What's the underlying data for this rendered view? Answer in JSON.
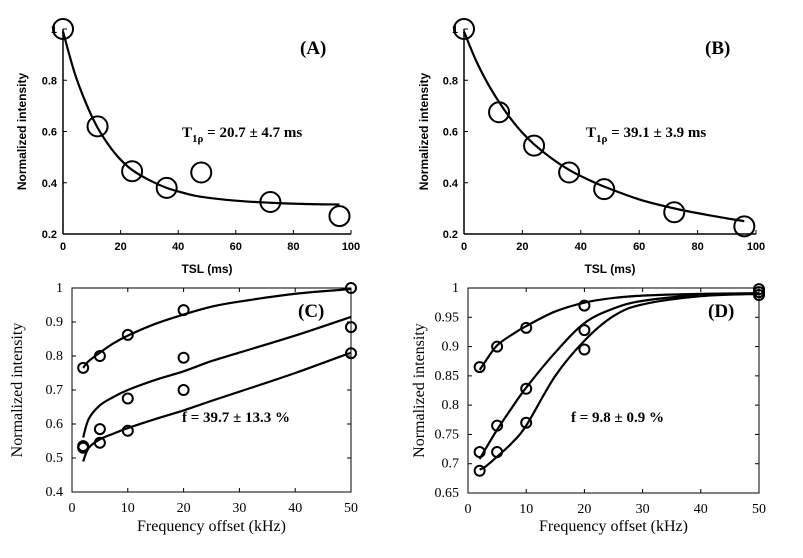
{
  "chart_data": [
    {
      "id": "A",
      "type": "scatter",
      "panel_label": "(A)",
      "xlabel": "TSL (ms)",
      "ylabel": "Normalized intensity",
      "xlim": [
        0,
        100
      ],
      "ylim": [
        0.2,
        1.0
      ],
      "xticks": [
        0,
        20,
        40,
        60,
        80,
        100
      ],
      "yticks": [
        0.2,
        0.4,
        0.6,
        0.8,
        1.0
      ],
      "ytick_labels": [
        "0.2",
        "0.4",
        "0.6",
        "0.8",
        "1"
      ],
      "annotation": {
        "prefix": "T",
        "sub": "1ρ",
        "rest": " = 20.7 ± 4.7 ms"
      },
      "points": {
        "x": [
          0,
          12,
          24,
          36,
          48,
          72,
          96
        ],
        "y": [
          1.0,
          0.62,
          0.445,
          0.38,
          0.44,
          0.325,
          0.27
        ]
      },
      "fit": {
        "x": [
          0,
          4,
          8,
          12,
          16,
          20,
          24,
          30,
          36,
          42,
          48,
          60,
          72,
          84,
          96
        ],
        "y": [
          0.99,
          0.83,
          0.71,
          0.615,
          0.545,
          0.49,
          0.45,
          0.41,
          0.38,
          0.36,
          0.345,
          0.33,
          0.322,
          0.317,
          0.315
        ]
      }
    },
    {
      "id": "B",
      "type": "scatter",
      "panel_label": "(B)",
      "xlabel": "TSL (ms)",
      "ylabel": "Normalized intensity",
      "xlim": [
        0,
        100
      ],
      "ylim": [
        0.2,
        1.0
      ],
      "xticks": [
        0,
        20,
        40,
        60,
        80,
        100
      ],
      "yticks": [
        0.2,
        0.4,
        0.6,
        0.8,
        1.0
      ],
      "ytick_labels": [
        "0.2",
        "0.4",
        "0.6",
        "0.8",
        "1"
      ],
      "annotation": {
        "prefix": "T",
        "sub": "1ρ",
        "rest": " = 39.1 ± 3.9 ms"
      },
      "points": {
        "x": [
          0,
          12,
          24,
          36,
          48,
          72,
          96
        ],
        "y": [
          1.0,
          0.675,
          0.545,
          0.44,
          0.375,
          0.285,
          0.23
        ]
      },
      "fit": {
        "x": [
          0,
          4,
          8,
          12,
          16,
          20,
          24,
          30,
          36,
          42,
          48,
          60,
          72,
          84,
          96
        ],
        "y": [
          0.99,
          0.88,
          0.79,
          0.715,
          0.65,
          0.595,
          0.55,
          0.495,
          0.45,
          0.415,
          0.385,
          0.335,
          0.3,
          0.273,
          0.25
        ]
      }
    },
    {
      "id": "C",
      "type": "scatter",
      "panel_label": "(C)",
      "xlabel": "Frequency offset (kHz)",
      "ylabel": "Normalized intensity",
      "xlim": [
        0,
        50
      ],
      "ylim": [
        0.4,
        1.0
      ],
      "xticks": [
        0,
        10,
        20,
        30,
        40,
        50
      ],
      "yticks": [
        0.4,
        0.5,
        0.6,
        0.7,
        0.8,
        0.9,
        1.0
      ],
      "ytick_labels": [
        "0.4",
        "0.5",
        "0.6",
        "0.7",
        "0.8",
        "0.9",
        "1"
      ],
      "annotation": {
        "prefix": "f = 39.7 ± 13.3 %",
        "sub": "",
        "rest": ""
      },
      "series": [
        {
          "name": "curve 1",
          "points": {
            "x": [
              2,
              5,
              10,
              20,
              50
            ],
            "y": [
              0.765,
              0.8,
              0.862,
              0.935,
              1.0
            ]
          },
          "fit": {
            "x": [
              2,
              3,
              5,
              7.5,
              10,
              15,
              20,
              25,
              30,
              40,
              50
            ],
            "y": [
              0.765,
              0.785,
              0.81,
              0.838,
              0.86,
              0.895,
              0.922,
              0.945,
              0.96,
              0.983,
              0.997
            ]
          }
        },
        {
          "name": "curve 2",
          "points": {
            "x": [
              2,
              5,
              10,
              20,
              50
            ],
            "y": [
              0.535,
              0.585,
              0.675,
              0.795,
              0.885
            ]
          },
          "fit": {
            "x": [
              2,
              3,
              5,
              7.5,
              10,
              15,
              20,
              25,
              30,
              40,
              50
            ],
            "y": [
              0.56,
              0.615,
              0.655,
              0.68,
              0.7,
              0.73,
              0.755,
              0.785,
              0.81,
              0.86,
              0.915
            ]
          }
        },
        {
          "name": "curve 3",
          "points": {
            "x": [
              2,
              5,
              10,
              20,
              50
            ],
            "y": [
              0.53,
              0.545,
              0.58,
              0.7,
              0.808
            ]
          },
          "fit": {
            "x": [
              2,
              3,
              5,
              7.5,
              10,
              15,
              20,
              25,
              30,
              40,
              50
            ],
            "y": [
              0.49,
              0.53,
              0.555,
              0.572,
              0.588,
              0.615,
              0.64,
              0.668,
              0.695,
              0.75,
              0.81
            ]
          }
        }
      ]
    },
    {
      "id": "D",
      "type": "scatter",
      "panel_label": "(D)",
      "xlabel": "Frequency offset (kHz)",
      "ylabel": "Normalized intensity",
      "xlim": [
        0,
        50
      ],
      "ylim": [
        0.65,
        1.0
      ],
      "xticks": [
        0,
        10,
        20,
        30,
        40,
        50
      ],
      "yticks": [
        0.65,
        0.7,
        0.75,
        0.8,
        0.85,
        0.9,
        0.95,
        1.0
      ],
      "ytick_labels": [
        "0.65",
        "0.7",
        "0.75",
        "0.8",
        "0.85",
        "0.9",
        "0.95",
        "1"
      ],
      "annotation": {
        "prefix": "f = 9.8 ± 0.9 %",
        "sub": "",
        "rest": ""
      },
      "series": [
        {
          "name": "curve 1",
          "points": {
            "x": [
              2,
              5,
              10,
              20,
              50
            ],
            "y": [
              0.865,
              0.9,
              0.932,
              0.97,
              0.998
            ]
          },
          "fit": {
            "x": [
              2,
              3,
              5,
              7.5,
              10,
              15,
              20,
              25,
              30,
              40,
              50
            ],
            "y": [
              0.86,
              0.875,
              0.902,
              0.92,
              0.935,
              0.96,
              0.975,
              0.983,
              0.987,
              0.99,
              0.991
            ]
          }
        },
        {
          "name": "curve 2",
          "points": {
            "x": [
              2,
              5,
              10,
              20,
              50
            ],
            "y": [
              0.72,
              0.765,
              0.828,
              0.928,
              0.993
            ]
          },
          "fit": {
            "x": [
              2,
              3,
              5,
              7.5,
              10,
              15,
              20,
              25,
              30,
              40,
              50
            ],
            "y": [
              0.708,
              0.725,
              0.758,
              0.795,
              0.83,
              0.89,
              0.94,
              0.965,
              0.978,
              0.988,
              0.991
            ]
          }
        },
        {
          "name": "curve 3",
          "points": {
            "x": [
              2,
              5,
              10,
              20,
              50
            ],
            "y": [
              0.688,
              0.72,
              0.77,
              0.895,
              0.988
            ]
          },
          "fit": {
            "x": [
              2,
              3,
              5,
              7.5,
              10,
              15,
              20,
              25,
              30,
              40,
              50
            ],
            "y": [
              0.69,
              0.695,
              0.712,
              0.735,
              0.765,
              0.85,
              0.91,
              0.952,
              0.972,
              0.986,
              0.99
            ]
          }
        }
      ]
    }
  ]
}
